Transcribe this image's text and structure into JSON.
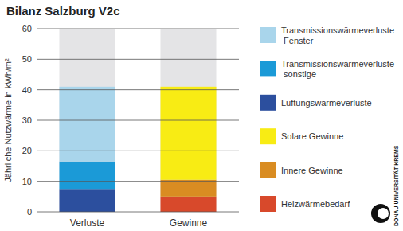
{
  "chart_data": {
    "type": "bar",
    "title": "Bilanz Salzburg V2c",
    "y_label": "Jährliche Nutzwärme in kWh/m²",
    "logo": "DONAU UNIVERSITÄT KREMS",
    "categories": [
      "Verluste",
      "Gewinne"
    ],
    "stacked": true,
    "grid": true,
    "legend": "right",
    "ylim": [
      0,
      60
    ],
    "yticks": [
      0,
      10,
      20,
      30,
      40,
      50,
      60
    ],
    "series": [
      {
        "name": "Transmissionswärmeverluste Fenster",
        "color": "#a9d5eb",
        "values": [
          24.5,
          null
        ]
      },
      {
        "name": "Transmissionswärmeverluste sonstige",
        "color": "#1b9ad7",
        "values": [
          9,
          null
        ]
      },
      {
        "name": "Lüftungswärmeverluste",
        "color": "#2c4f9e",
        "values": [
          7.5,
          null
        ]
      },
      {
        "name": "Solare Gewinne",
        "color": "#f8ec14",
        "values": [
          null,
          30.5
        ]
      },
      {
        "name": "Innere Gewinne",
        "color": "#d98c22",
        "values": [
          null,
          5.5
        ]
      },
      {
        "name": "Heizwärmebedarf",
        "color": "#d8492b",
        "values": [
          null,
          5
        ]
      }
    ]
  }
}
